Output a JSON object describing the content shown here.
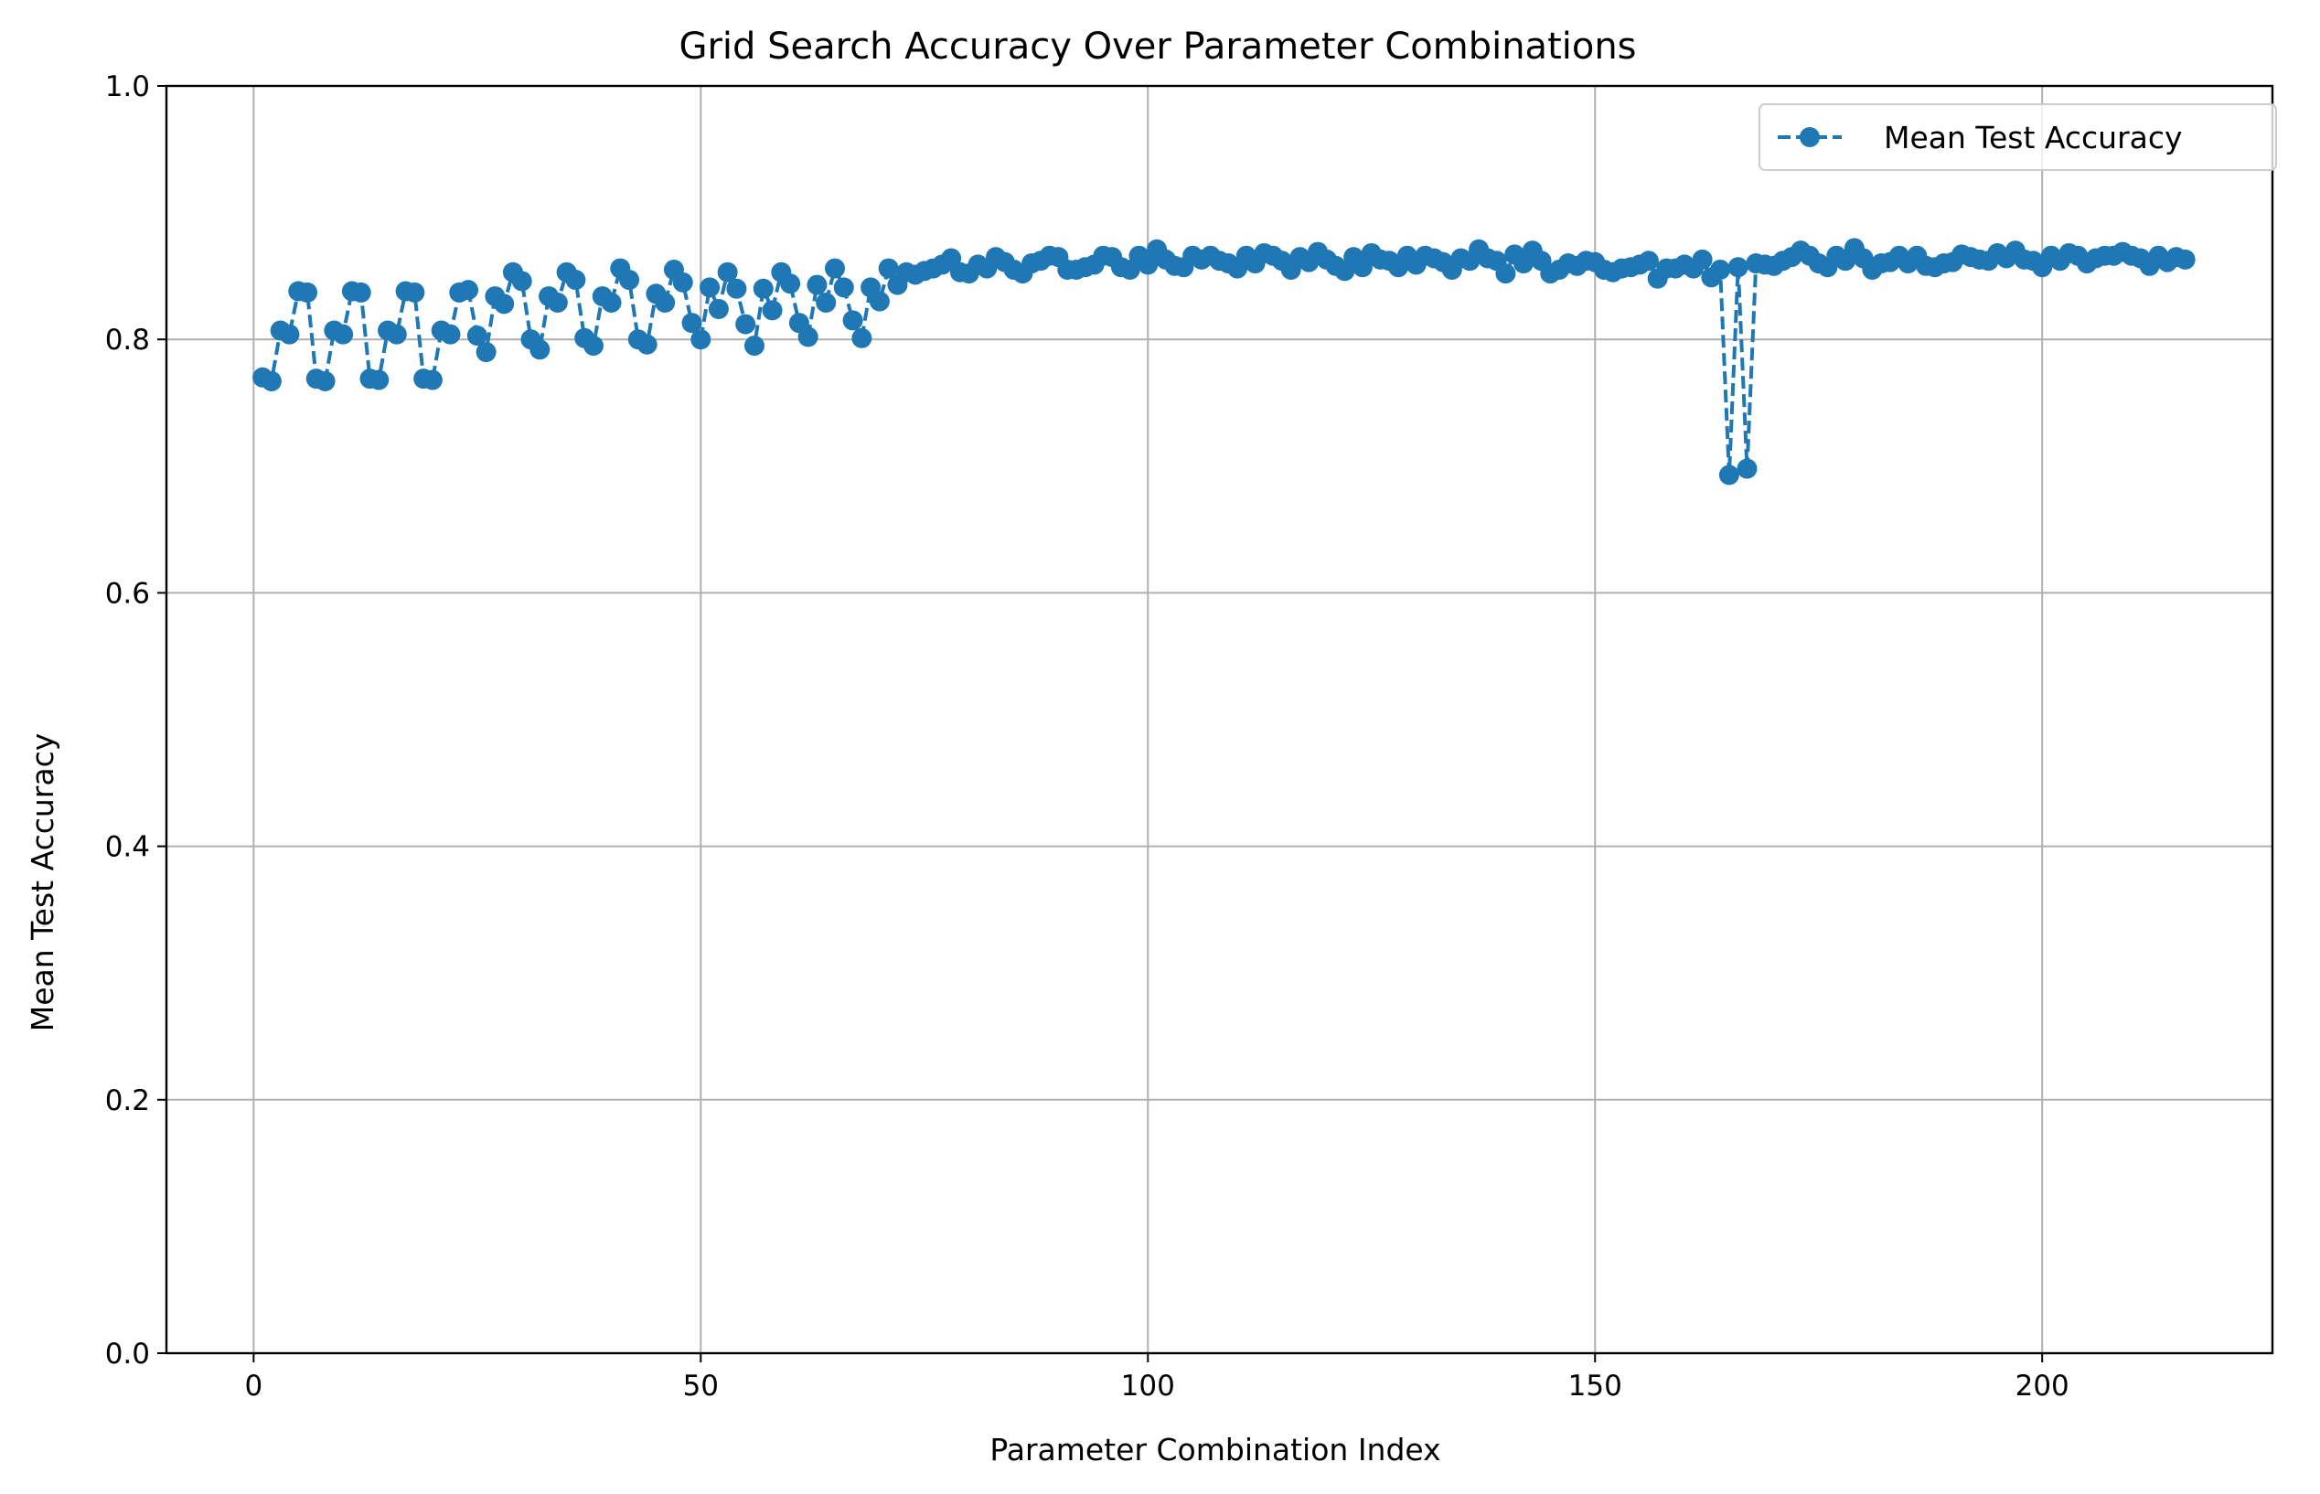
{
  "chart_data": {
    "type": "line",
    "title": "Grid Search Accuracy Over Parameter Combinations",
    "xlabel": "Parameter Combination Index",
    "ylabel": "Mean Test Accuracy",
    "xlim": [
      -9.75,
      225.75
    ],
    "ylim": [
      0.0,
      1.0
    ],
    "xticks": [
      0,
      50,
      100,
      150,
      200
    ],
    "yticks": [
      0.0,
      0.2,
      0.4,
      0.6,
      0.8,
      1.0
    ],
    "xtick_labels": [
      "0",
      "50",
      "100",
      "150",
      "200"
    ],
    "ytick_labels": [
      "0.0",
      "0.2",
      "0.4",
      "0.6",
      "0.8",
      "1.0"
    ],
    "grid": true,
    "legend_position": "top-right",
    "series": [
      {
        "name": "Mean Test Accuracy",
        "color": "#1f77b4",
        "line_style": "dashed",
        "marker": "circle",
        "x": [
          1,
          2,
          3,
          4,
          5,
          6,
          7,
          8,
          9,
          10,
          11,
          12,
          13,
          14,
          15,
          16,
          17,
          18,
          19,
          20,
          21,
          22,
          23,
          24,
          25,
          26,
          27,
          28,
          29,
          30,
          31,
          32,
          33,
          34,
          35,
          36,
          37,
          38,
          39,
          40,
          41,
          42,
          43,
          44,
          45,
          46,
          47,
          48,
          49,
          50,
          51,
          52,
          53,
          54,
          55,
          56,
          57,
          58,
          59,
          60,
          61,
          62,
          63,
          64,
          65,
          66,
          67,
          68,
          69,
          70,
          71,
          72,
          73,
          74,
          75,
          76,
          77,
          78,
          79,
          80,
          81,
          82,
          83,
          84,
          85,
          86,
          87,
          88,
          89,
          90,
          91,
          92,
          93,
          94,
          95,
          96,
          97,
          98,
          99,
          100,
          101,
          102,
          103,
          104,
          105,
          106,
          107,
          108,
          109,
          110,
          111,
          112,
          113,
          114,
          115,
          116,
          117,
          118,
          119,
          120,
          121,
          122,
          123,
          124,
          125,
          126,
          127,
          128,
          129,
          130,
          131,
          132,
          133,
          134,
          135,
          136,
          137,
          138,
          139,
          140,
          141,
          142,
          143,
          144,
          145,
          146,
          147,
          148,
          149,
          150,
          151,
          152,
          153,
          154,
          155,
          156,
          157,
          158,
          159,
          160,
          161,
          162,
          163,
          164,
          165,
          166,
          167,
          168,
          169,
          170,
          171,
          172,
          173,
          174,
          175,
          176,
          177,
          178,
          179,
          180,
          181,
          182,
          183,
          184,
          185,
          186,
          187,
          188,
          189,
          190,
          191,
          192,
          193,
          194,
          195,
          196,
          197,
          198,
          199,
          200,
          201,
          202,
          203,
          204,
          205,
          206,
          207,
          208,
          209,
          210,
          211,
          212,
          213,
          214,
          215,
          216
        ],
        "y": [
          0.77,
          0.767,
          0.807,
          0.804,
          0.838,
          0.837,
          0.769,
          0.767,
          0.807,
          0.804,
          0.838,
          0.837,
          0.769,
          0.768,
          0.807,
          0.804,
          0.838,
          0.837,
          0.769,
          0.768,
          0.807,
          0.804,
          0.837,
          0.839,
          0.803,
          0.79,
          0.834,
          0.828,
          0.853,
          0.846,
          0.8,
          0.792,
          0.834,
          0.829,
          0.853,
          0.847,
          0.801,
          0.795,
          0.834,
          0.829,
          0.856,
          0.847,
          0.8,
          0.796,
          0.836,
          0.829,
          0.855,
          0.845,
          0.813,
          0.8,
          0.841,
          0.824,
          0.853,
          0.84,
          0.812,
          0.795,
          0.84,
          0.823,
          0.853,
          0.844,
          0.813,
          0.802,
          0.843,
          0.829,
          0.856,
          0.841,
          0.815,
          0.801,
          0.841,
          0.83,
          0.856,
          0.843,
          0.853,
          0.851,
          0.854,
          0.856,
          0.859,
          0.864,
          0.853,
          0.852,
          0.859,
          0.856,
          0.865,
          0.861,
          0.855,
          0.852,
          0.86,
          0.862,
          0.866,
          0.865,
          0.855,
          0.855,
          0.857,
          0.859,
          0.866,
          0.865,
          0.857,
          0.855,
          0.866,
          0.859,
          0.871,
          0.863,
          0.858,
          0.857,
          0.866,
          0.863,
          0.866,
          0.862,
          0.86,
          0.856,
          0.866,
          0.86,
          0.868,
          0.866,
          0.862,
          0.855,
          0.865,
          0.861,
          0.869,
          0.863,
          0.858,
          0.854,
          0.865,
          0.857,
          0.868,
          0.863,
          0.862,
          0.857,
          0.866,
          0.859,
          0.866,
          0.864,
          0.861,
          0.855,
          0.864,
          0.862,
          0.871,
          0.864,
          0.862,
          0.852,
          0.867,
          0.86,
          0.87,
          0.862,
          0.852,
          0.855,
          0.86,
          0.858,
          0.862,
          0.861,
          0.855,
          0.853,
          0.856,
          0.857,
          0.859,
          0.862,
          0.848,
          0.856,
          0.856,
          0.859,
          0.856,
          0.863,
          0.849,
          0.855,
          0.693,
          0.857,
          0.698,
          0.86,
          0.859,
          0.858,
          0.862,
          0.865,
          0.87,
          0.866,
          0.86,
          0.857,
          0.866,
          0.862,
          0.872,
          0.864,
          0.855,
          0.86,
          0.861,
          0.866,
          0.86,
          0.866,
          0.858,
          0.857,
          0.86,
          0.861,
          0.867,
          0.865,
          0.863,
          0.862,
          0.868,
          0.864,
          0.87,
          0.863,
          0.862,
          0.857,
          0.866,
          0.862,
          0.868,
          0.866,
          0.86,
          0.864,
          0.866,
          0.866,
          0.869,
          0.866,
          0.864,
          0.858,
          0.866,
          0.861,
          0.865,
          0.863
        ]
      }
    ]
  }
}
